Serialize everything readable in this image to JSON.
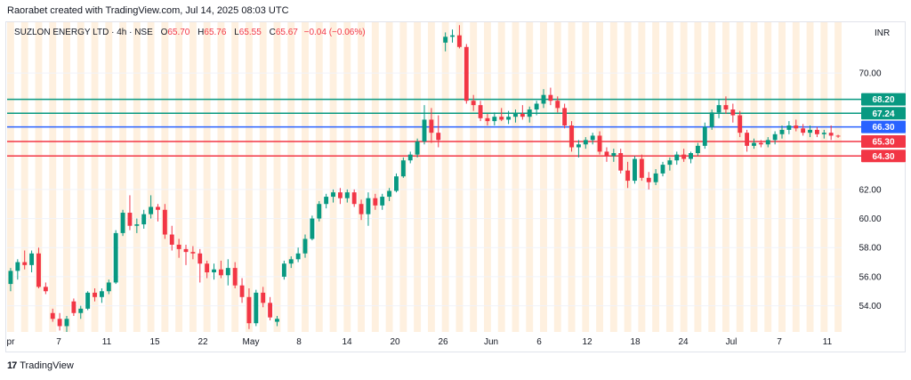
{
  "header": {
    "attribution": "Raorabet created with TradingView.com, Jul 14, 2025 08:03 UTC"
  },
  "legend": {
    "symbol": "SUZLON ENERGY LTD · 4h · NSE",
    "open_label": "O",
    "open": "65.70",
    "high_label": "H",
    "high": "65.76",
    "low_label": "L",
    "low": "65.55",
    "close_label": "C",
    "close": "65.67",
    "change": "−0.04 (−0.06%)"
  },
  "currency": "INR",
  "footer": {
    "brand": "TradingView"
  },
  "chart_data": {
    "type": "candlestick",
    "ylim": [
      52.2,
      73.5
    ],
    "y_ticks": [
      "70.00",
      "62.00",
      "60.00",
      "58.00",
      "56.00",
      "54.00"
    ],
    "x_ticks": [
      "pr",
      "7",
      "11",
      "15",
      "22",
      "May",
      "8",
      "14",
      "20",
      "26",
      "Jun",
      "6",
      "12",
      "18",
      "24",
      "Jul",
      "7",
      "11"
    ],
    "levels": [
      {
        "price": 68.2,
        "label": "68.20",
        "color": "#089981"
      },
      {
        "price": 67.24,
        "label": "67.24",
        "color": "#089981"
      },
      {
        "price": 66.3,
        "label": "66.30",
        "color": "#2962ff"
      },
      {
        "price": 65.3,
        "label": "65.30",
        "color": "#f23645"
      },
      {
        "price": 64.3,
        "label": "64.30",
        "color": "#f23645"
      }
    ],
    "colors": {
      "up": "#089981",
      "down": "#f23645",
      "session": "#fde4c4",
      "grid": "#f0f3fa"
    },
    "candles": [
      [
        55.5,
        56.6,
        55.0,
        56.4
      ],
      [
        56.4,
        57.2,
        55.8,
        57.0
      ],
      [
        57.0,
        57.8,
        56.5,
        56.8
      ],
      [
        56.8,
        57.8,
        56.3,
        57.6
      ],
      [
        57.6,
        58.0,
        55.2,
        55.3
      ],
      [
        55.3,
        55.6,
        54.8,
        55.0
      ],
      [
        53.5,
        53.8,
        52.9,
        53.1
      ],
      [
        53.1,
        53.5,
        52.3,
        52.6
      ],
      [
        52.6,
        53.3,
        52.2,
        53.1
      ],
      [
        54.3,
        54.5,
        53.3,
        53.5
      ],
      [
        53.5,
        54.0,
        53.1,
        53.8
      ],
      [
        53.8,
        55.0,
        53.7,
        54.9
      ],
      [
        54.9,
        55.2,
        54.3,
        54.6
      ],
      [
        54.6,
        55.2,
        54.2,
        55.0
      ],
      [
        55.0,
        55.8,
        54.8,
        55.6
      ],
      [
        55.6,
        59.2,
        55.5,
        59.0
      ],
      [
        59.0,
        60.6,
        58.8,
        60.4
      ],
      [
        60.4,
        61.6,
        59.2,
        59.5
      ],
      [
        59.5,
        60.0,
        59.0,
        59.6
      ],
      [
        59.6,
        60.6,
        59.3,
        60.3
      ],
      [
        60.3,
        61.6,
        60.0,
        60.8
      ],
      [
        60.8,
        61.0,
        59.8,
        60.6
      ],
      [
        60.6,
        61.0,
        58.6,
        58.9
      ],
      [
        58.9,
        59.5,
        57.8,
        58.2
      ],
      [
        58.2,
        58.6,
        57.3,
        57.9
      ],
      [
        57.9,
        58.2,
        56.8,
        57.7
      ],
      [
        57.7,
        58.1,
        57.2,
        57.6
      ],
      [
        57.6,
        57.9,
        55.6,
        56.9
      ],
      [
        56.9,
        57.1,
        55.9,
        56.3
      ],
      [
        56.3,
        56.9,
        55.8,
        56.5
      ],
      [
        56.5,
        57.1,
        55.9,
        56.1
      ],
      [
        56.1,
        57.2,
        55.4,
        56.6
      ],
      [
        56.6,
        57.0,
        55.2,
        55.4
      ],
      [
        55.4,
        55.9,
        54.2,
        54.6
      ],
      [
        54.6,
        55.2,
        52.4,
        52.8
      ],
      [
        52.8,
        55.1,
        52.6,
        54.9
      ],
      [
        54.9,
        55.3,
        53.9,
        54.2
      ],
      [
        54.2,
        54.6,
        53.0,
        53.2
      ],
      [
        52.9,
        53.3,
        52.6,
        53.1
      ],
      [
        56.0,
        57.1,
        55.8,
        56.9
      ],
      [
        56.9,
        57.4,
        56.6,
        57.2
      ],
      [
        57.2,
        58.0,
        57.0,
        57.6
      ],
      [
        57.6,
        58.9,
        57.3,
        58.6
      ],
      [
        58.6,
        60.2,
        58.5,
        60.0
      ],
      [
        60.0,
        61.2,
        59.8,
        61.0
      ],
      [
        61.0,
        61.7,
        60.7,
        61.5
      ],
      [
        61.5,
        62.0,
        61.1,
        61.8
      ],
      [
        61.8,
        62.1,
        61.0,
        61.4
      ],
      [
        61.4,
        62.0,
        61.1,
        61.8
      ],
      [
        61.8,
        62.0,
        60.8,
        61.0
      ],
      [
        61.0,
        61.3,
        59.9,
        60.3
      ],
      [
        60.3,
        61.8,
        59.5,
        61.4
      ],
      [
        61.4,
        61.7,
        60.6,
        60.9
      ],
      [
        60.9,
        61.7,
        60.6,
        61.5
      ],
      [
        61.5,
        62.1,
        61.2,
        61.9
      ],
      [
        61.9,
        63.1,
        61.8,
        62.9
      ],
      [
        62.9,
        64.2,
        62.8,
        64.0
      ],
      [
        64.0,
        64.6,
        63.8,
        64.4
      ],
      [
        64.4,
        65.5,
        64.2,
        65.3
      ],
      [
        65.3,
        67.8,
        65.1,
        66.8
      ],
      [
        66.8,
        67.6,
        65.2,
        65.9
      ],
      [
        65.9,
        67.1,
        64.9,
        65.4
      ],
      [
        72.1,
        72.8,
        71.5,
        72.5
      ],
      [
        72.5,
        73.0,
        72.1,
        72.6
      ],
      [
        72.6,
        73.3,
        71.7,
        71.8
      ],
      [
        71.8,
        72.0,
        67.9,
        68.1
      ],
      [
        68.1,
        68.5,
        67.4,
        67.8
      ],
      [
        67.8,
        68.1,
        66.7,
        66.9
      ],
      [
        66.9,
        67.2,
        66.4,
        66.7
      ],
      [
        66.7,
        67.3,
        66.4,
        67.0
      ],
      [
        67.0,
        67.6,
        66.7,
        66.8
      ],
      [
        66.8,
        67.4,
        66.5,
        67.0
      ],
      [
        67.0,
        67.5,
        66.6,
        67.2
      ],
      [
        67.2,
        67.8,
        66.8,
        67.0
      ],
      [
        67.0,
        67.7,
        66.6,
        67.5
      ],
      [
        67.5,
        68.1,
        67.1,
        67.9
      ],
      [
        67.9,
        68.9,
        67.6,
        68.5
      ],
      [
        68.5,
        69.0,
        67.8,
        68.1
      ],
      [
        68.1,
        68.4,
        67.3,
        67.6
      ],
      [
        67.6,
        67.9,
        66.2,
        66.4
      ],
      [
        66.4,
        66.7,
        64.6,
        64.9
      ],
      [
        64.9,
        65.4,
        64.2,
        65.1
      ],
      [
        65.1,
        65.6,
        64.8,
        65.4
      ],
      [
        65.4,
        65.9,
        65.1,
        65.7
      ],
      [
        65.7,
        66.0,
        64.4,
        64.6
      ],
      [
        64.6,
        64.9,
        63.9,
        64.3
      ],
      [
        64.3,
        64.8,
        63.9,
        64.5
      ],
      [
        64.5,
        64.8,
        63.1,
        63.3
      ],
      [
        63.3,
        63.9,
        62.1,
        62.6
      ],
      [
        62.6,
        64.3,
        62.4,
        64.1
      ],
      [
        64.1,
        64.4,
        62.6,
        62.8
      ],
      [
        62.8,
        63.2,
        62.0,
        62.5
      ],
      [
        62.5,
        63.4,
        62.3,
        63.1
      ],
      [
        63.1,
        63.9,
        62.9,
        63.7
      ],
      [
        63.7,
        64.2,
        63.3,
        64.0
      ],
      [
        64.0,
        64.6,
        63.7,
        64.4
      ],
      [
        64.4,
        64.8,
        63.9,
        64.1
      ],
      [
        64.1,
        64.6,
        63.8,
        64.5
      ],
      [
        64.5,
        65.2,
        64.3,
        65.0
      ],
      [
        65.0,
        66.6,
        64.8,
        66.3
      ],
      [
        66.3,
        67.5,
        66.1,
        67.3
      ],
      [
        67.3,
        68.2,
        66.9,
        67.8
      ],
      [
        67.8,
        68.4,
        67.2,
        67.5
      ],
      [
        67.5,
        67.9,
        66.6,
        67.1
      ],
      [
        67.1,
        67.4,
        65.6,
        65.9
      ],
      [
        65.9,
        66.1,
        64.6,
        65.0
      ],
      [
        65.0,
        65.5,
        64.8,
        65.2
      ],
      [
        65.2,
        65.4,
        64.9,
        65.1
      ],
      [
        65.1,
        65.6,
        64.9,
        65.4
      ],
      [
        65.4,
        66.0,
        65.1,
        65.8
      ],
      [
        65.8,
        66.4,
        65.5,
        66.1
      ],
      [
        66.1,
        66.7,
        65.8,
        66.4
      ],
      [
        66.4,
        66.8,
        66.0,
        66.2
      ],
      [
        66.2,
        66.5,
        65.7,
        65.9
      ],
      [
        65.9,
        66.4,
        65.6,
        66.1
      ],
      [
        66.1,
        66.3,
        65.6,
        65.8
      ],
      [
        65.8,
        66.1,
        65.5,
        65.9
      ],
      [
        65.9,
        66.4,
        65.4,
        65.7
      ],
      [
        65.7,
        65.76,
        65.55,
        65.67
      ]
    ]
  }
}
